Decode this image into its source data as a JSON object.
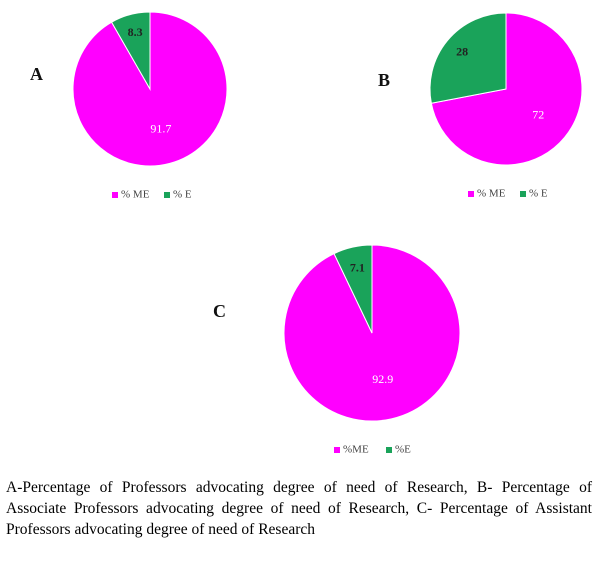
{
  "chart_data": [
    {
      "type": "pie",
      "title": "A",
      "categories": [
        "% ME",
        "% E"
      ],
      "values": [
        91.7,
        8.3
      ],
      "colors": [
        "#ff00ff",
        "#1aa35a"
      ]
    },
    {
      "type": "pie",
      "title": "B",
      "categories": [
        "% ME",
        "% E"
      ],
      "values": [
        72,
        28
      ],
      "colors": [
        "#ff00ff",
        "#1aa35a"
      ]
    },
    {
      "type": "pie",
      "title": "C",
      "categories": [
        "%ME",
        "%E"
      ],
      "values": [
        92.9,
        7.1
      ],
      "colors": [
        "#ff00ff",
        "#1aa35a"
      ]
    }
  ],
  "caption": "A-Percentage of Professors advocating degree of need of Research, B- Percentage of Associate Professors advocating degree of need of Research, C- Percentage of Assistant Professors advocating degree of need of Research"
}
